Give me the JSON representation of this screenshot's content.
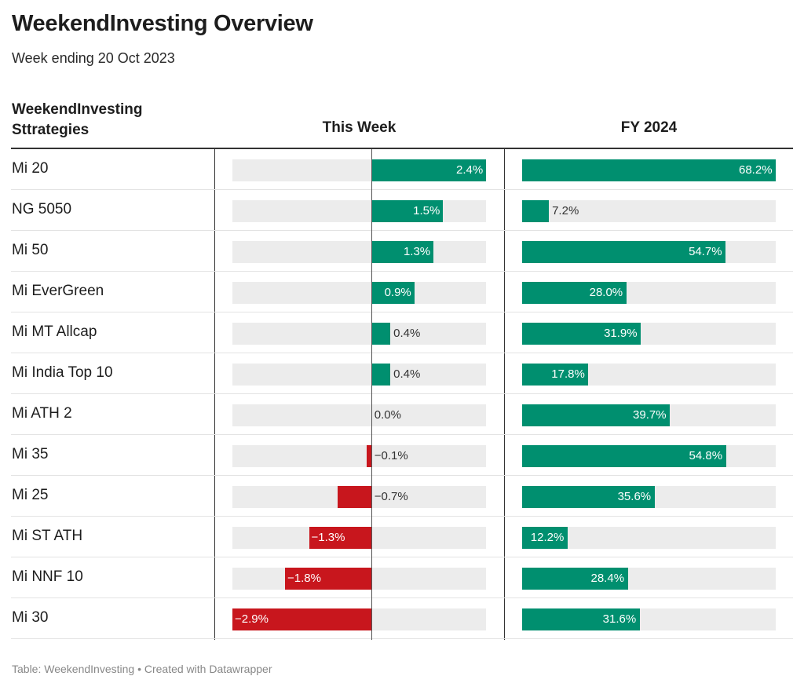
{
  "title": "WeekendInvesting Overview",
  "subtitle": "Week ending 20 Oct 2023",
  "headers": {
    "name_line1": "WeekendInvesting",
    "name_line2": "Sttrategies",
    "this_week": "This Week",
    "fy": "FY 2024"
  },
  "footer": "Table: WeekendInvesting • Created with Datawrapper",
  "colors": {
    "positive": "#008f6f",
    "negative": "#c8161d",
    "track": "#ececec"
  },
  "chart_data": {
    "type": "table",
    "columns": [
      "WeekendInvesting Sttrategies",
      "This Week",
      "FY 2024"
    ],
    "this_week_range": [
      -2.9,
      2.4
    ],
    "fy_range": [
      0,
      68.2
    ],
    "rows": [
      {
        "name": "Mi 20",
        "week": 2.4,
        "week_label": "2.4%",
        "fy": 68.2,
        "fy_label": "68.2%"
      },
      {
        "name": "NG 5050",
        "week": 1.5,
        "week_label": "1.5%",
        "fy": 7.2,
        "fy_label": "7.2%"
      },
      {
        "name": "Mi 50",
        "week": 1.3,
        "week_label": "1.3%",
        "fy": 54.7,
        "fy_label": "54.7%"
      },
      {
        "name": "Mi EverGreen",
        "week": 0.9,
        "week_label": "0.9%",
        "fy": 28.0,
        "fy_label": "28.0%"
      },
      {
        "name": "Mi MT Allcap",
        "week": 0.4,
        "week_label": "0.4%",
        "fy": 31.9,
        "fy_label": "31.9%"
      },
      {
        "name": "Mi India Top 10",
        "week": 0.4,
        "week_label": "0.4%",
        "fy": 17.8,
        "fy_label": "17.8%"
      },
      {
        "name": "Mi ATH 2",
        "week": 0.0,
        "week_label": "0.0%",
        "fy": 39.7,
        "fy_label": "39.7%"
      },
      {
        "name": "Mi 35",
        "week": -0.1,
        "week_label": "−0.1%",
        "fy": 54.8,
        "fy_label": "54.8%"
      },
      {
        "name": "Mi 25",
        "week": -0.7,
        "week_label": "−0.7%",
        "fy": 35.6,
        "fy_label": "35.6%"
      },
      {
        "name": "Mi ST ATH",
        "week": -1.3,
        "week_label": "−1.3%",
        "fy": 12.2,
        "fy_label": "12.2%"
      },
      {
        "name": "Mi NNF 10",
        "week": -1.8,
        "week_label": "−1.8%",
        "fy": 28.4,
        "fy_label": "28.4%"
      },
      {
        "name": "Mi 30",
        "week": -2.9,
        "week_label": "−2.9%",
        "fy": 31.6,
        "fy_label": "31.6%"
      }
    ]
  }
}
